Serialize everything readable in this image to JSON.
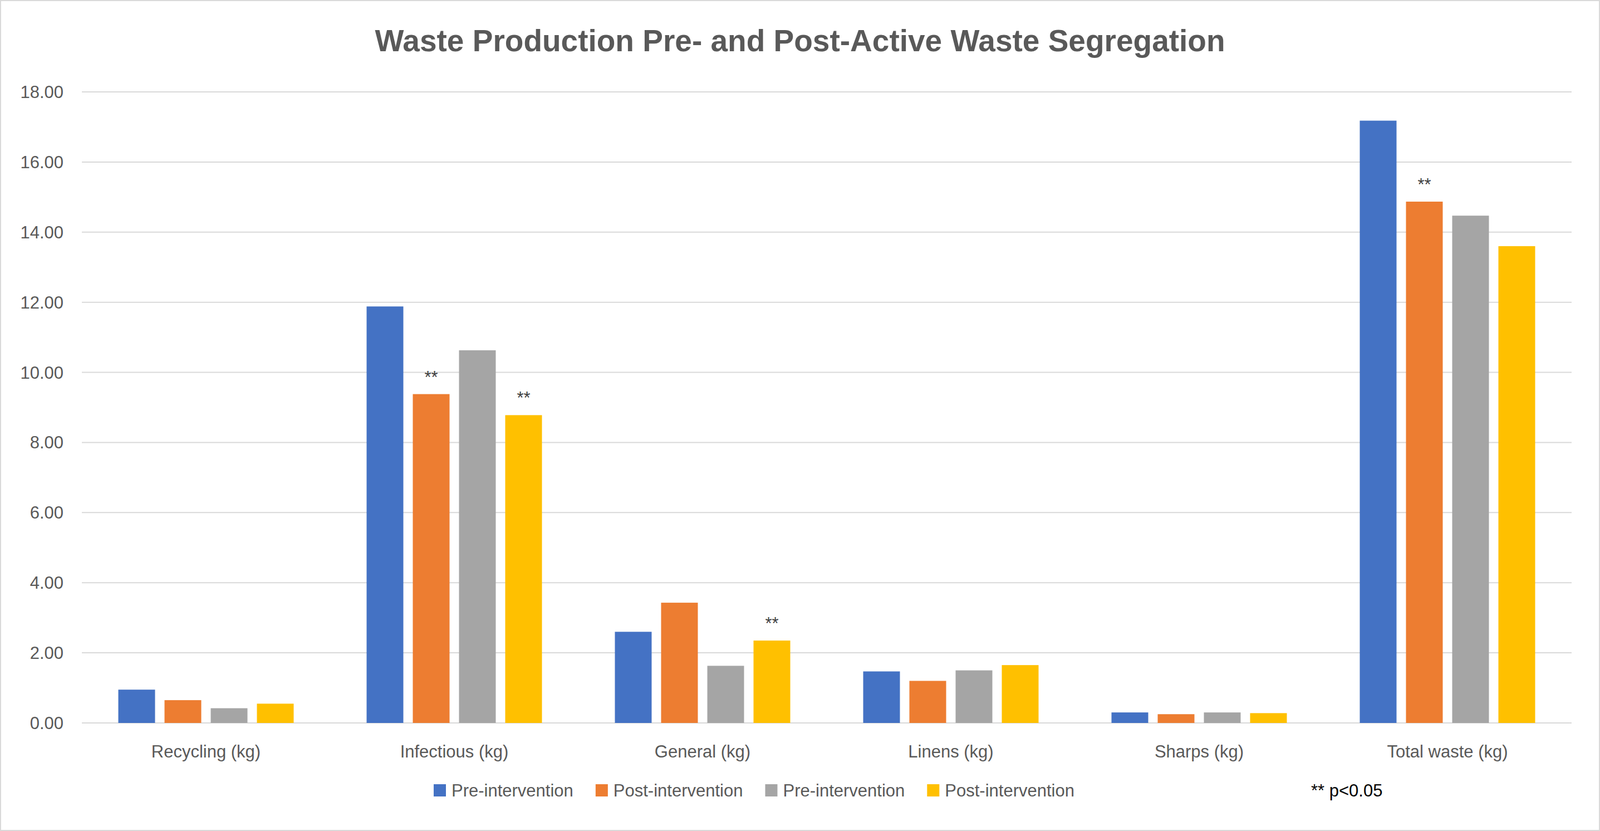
{
  "chart_data": {
    "type": "bar",
    "title": "Waste Production Pre- and Post-Active Waste Segregation",
    "categories": [
      "Recycling (kg)",
      "Infectious (kg)",
      "General  (kg)",
      "Linens (kg)",
      "Sharps (kg)",
      "Total waste (kg)"
    ],
    "series": [
      {
        "name": "Pre-intervention",
        "color": "#4472c4",
        "values": [
          0.95,
          11.88,
          2.6,
          1.47,
          0.3,
          17.18
        ],
        "annotations": [
          null,
          null,
          null,
          null,
          null,
          null
        ]
      },
      {
        "name": "Post-intervention",
        "color": "#ed7d31",
        "values": [
          0.65,
          9.38,
          3.43,
          1.2,
          0.25,
          14.87
        ],
        "annotations": [
          null,
          "**",
          null,
          null,
          null,
          "**"
        ]
      },
      {
        "name": "Pre-intervention",
        "color": "#a5a5a5",
        "values": [
          0.42,
          10.63,
          1.63,
          1.5,
          0.3,
          14.47
        ],
        "annotations": [
          null,
          null,
          null,
          null,
          null,
          null
        ]
      },
      {
        "name": "Post-intervention",
        "color": "#ffc000",
        "values": [
          0.55,
          8.78,
          2.35,
          1.65,
          0.28,
          13.6
        ],
        "annotations": [
          null,
          "**",
          "**",
          null,
          null,
          null
        ]
      }
    ],
    "footnote": "** p<0.05",
    "ylim": [
      0,
      18
    ],
    "yticks": [
      {
        "value": 0,
        "label": "0.00"
      },
      {
        "value": 2,
        "label": "2.00"
      },
      {
        "value": 4,
        "label": "4.00"
      },
      {
        "value": 6,
        "label": "6.00"
      },
      {
        "value": 8,
        "label": "8.00"
      },
      {
        "value": 10,
        "label": "10.00"
      },
      {
        "value": 12,
        "label": "12.00"
      },
      {
        "value": 14,
        "label": "14.00"
      },
      {
        "value": 16,
        "label": "16.00"
      },
      {
        "value": 18,
        "label": "18.00"
      }
    ],
    "grid": true,
    "legend": "bottom"
  }
}
